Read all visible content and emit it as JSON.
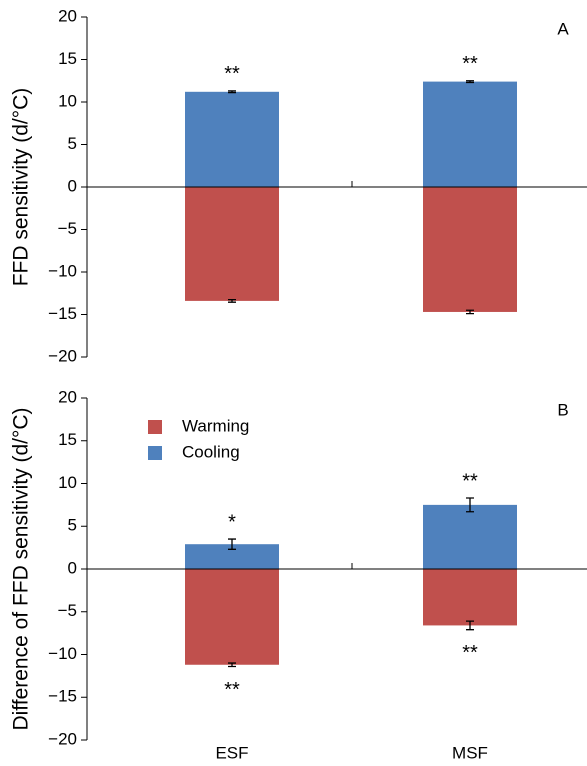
{
  "chart_data": [
    {
      "type": "bar",
      "panel_label": "A",
      "y_label": "FFD sensitivity (d/°C)",
      "categories": [
        null,
        null
      ],
      "series": [
        {
          "color": "#c0504d",
          "values": [
            -13.4,
            -14.7
          ],
          "errors": [
            0.15,
            0.2
          ],
          "annotations": [
            null,
            null
          ]
        },
        {
          "color": "#4f81bd",
          "values": [
            11.2,
            12.4
          ],
          "errors": [
            0.1,
            0.1
          ],
          "annotations": [
            "**",
            "**"
          ]
        }
      ],
      "ylim": [
        -20,
        20
      ],
      "yticks": [
        {
          "value": -20,
          "label": "−20"
        },
        {
          "value": -15,
          "label": "−15"
        },
        {
          "value": -10,
          "label": "−10"
        },
        {
          "value": -5,
          "label": "−5"
        },
        0,
        5,
        10,
        15,
        20
      ]
    },
    {
      "type": "bar",
      "panel_label": "B",
      "y_label": "Difference of FFD sensitivity (d/°C)",
      "categories": [
        "ESF",
        "MSF"
      ],
      "series": [
        {
          "name": "Warming",
          "color": "#c0504d",
          "values": [
            -11.2,
            -6.6
          ],
          "errors": [
            0.2,
            0.5
          ],
          "annotations": [
            "**",
            "**"
          ]
        },
        {
          "name": "Cooling",
          "color": "#4f81bd",
          "values": [
            2.9,
            7.5
          ],
          "errors": [
            0.6,
            0.8
          ],
          "annotations": [
            "*",
            "**"
          ]
        }
      ],
      "legend": "upper left",
      "ylim": [
        -20,
        20
      ],
      "yticks": [
        {
          "value": -20,
          "label": "−20"
        },
        {
          "value": -15,
          "label": "−15"
        },
        {
          "value": -10,
          "label": "−10"
        },
        {
          "value": -5,
          "label": "−5"
        },
        0,
        5,
        10,
        15,
        20
      ]
    }
  ]
}
